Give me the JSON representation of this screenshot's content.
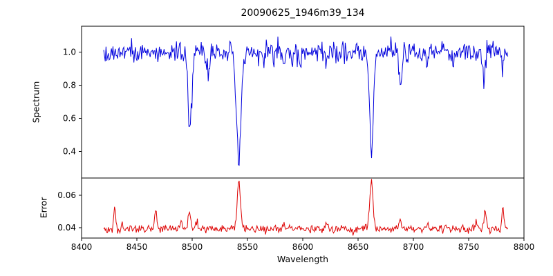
{
  "figure": {
    "background": "#ffffff",
    "axis_color": "#000000"
  },
  "chart_data": [
    {
      "type": "line",
      "title": "20090625_1946m39_134",
      "xlabel": "Wavelength",
      "ylabel": "Spectrum",
      "color": "#0000dd",
      "grid": false,
      "legend": null,
      "xlim": [
        8400,
        8800
      ],
      "ylim": [
        0.24,
        1.155
      ],
      "x_ticks": [
        8400,
        8450,
        8500,
        8550,
        8600,
        8650,
        8700,
        8750,
        8800
      ],
      "x_tick_labels": [
        "8400",
        "8450",
        "8500",
        "8550",
        "8600",
        "8650",
        "8700",
        "8750",
        "8800"
      ],
      "y_ticks": [
        0.4,
        0.6,
        0.8,
        1.0
      ],
      "y_tick_labels": [
        "0.4",
        "0.6",
        "0.8",
        "1.0"
      ],
      "x_data_range": [
        8420,
        8786
      ],
      "sample_step": 0.7,
      "continuum": 1.0,
      "noise_sigma": 0.032,
      "absorption_lines": [
        {
          "center": 8498.0,
          "depth": 0.48,
          "width": 1.6
        },
        {
          "center": 8514.2,
          "depth": 0.1,
          "width": 1.2
        },
        {
          "center": 8542.1,
          "depth": 0.67,
          "width": 2.0
        },
        {
          "center": 8583.0,
          "depth": 0.09,
          "width": 1.2
        },
        {
          "center": 8598.0,
          "depth": 0.07,
          "width": 1.1
        },
        {
          "center": 8621.0,
          "depth": 0.1,
          "width": 1.2
        },
        {
          "center": 8662.1,
          "depth": 0.62,
          "width": 1.8
        },
        {
          "center": 8688.6,
          "depth": 0.22,
          "width": 1.3
        },
        {
          "center": 8713.0,
          "depth": 0.07,
          "width": 1.0
        },
        {
          "center": 8736.0,
          "depth": 0.08,
          "width": 1.1
        },
        {
          "center": 8764.0,
          "depth": 0.17,
          "width": 1.2
        },
        {
          "center": 8781.0,
          "depth": 0.1,
          "width": 1.0
        }
      ]
    },
    {
      "type": "line",
      "ylabel": "Error",
      "color": "#dd0000",
      "grid": false,
      "legend": null,
      "xlim": [
        8400,
        8800
      ],
      "ylim": [
        0.0336,
        0.0706
      ],
      "y_ticks": [
        0.04,
        0.06
      ],
      "y_tick_labels": [
        "0.04",
        "0.06"
      ],
      "x_data_range": [
        8420,
        8786
      ],
      "sample_step": 0.7,
      "baseline": 0.0393,
      "noise_sigma": 0.0012,
      "peaks": [
        {
          "center": 8430.0,
          "amp": 0.0128,
          "width": 0.9
        },
        {
          "center": 8437.0,
          "amp": 0.004,
          "width": 0.8
        },
        {
          "center": 8467.0,
          "amp": 0.0118,
          "width": 0.9
        },
        {
          "center": 8490.0,
          "amp": 0.005,
          "width": 1.0
        },
        {
          "center": 8497.5,
          "amp": 0.0098,
          "width": 1.2
        },
        {
          "center": 8504.0,
          "amp": 0.005,
          "width": 1.0
        },
        {
          "center": 8542.1,
          "amp": 0.028,
          "width": 1.4
        },
        {
          "center": 8583.0,
          "amp": 0.004,
          "width": 0.9
        },
        {
          "center": 8621.0,
          "amp": 0.0035,
          "width": 0.9
        },
        {
          "center": 8662.1,
          "amp": 0.0295,
          "width": 1.4
        },
        {
          "center": 8688.0,
          "amp": 0.006,
          "width": 0.9
        },
        {
          "center": 8713.0,
          "amp": 0.003,
          "width": 0.8
        },
        {
          "center": 8757.0,
          "amp": 0.006,
          "width": 0.9
        },
        {
          "center": 8765.0,
          "amp": 0.0112,
          "width": 1.0
        },
        {
          "center": 8781.0,
          "amp": 0.0135,
          "width": 0.9
        }
      ]
    }
  ]
}
